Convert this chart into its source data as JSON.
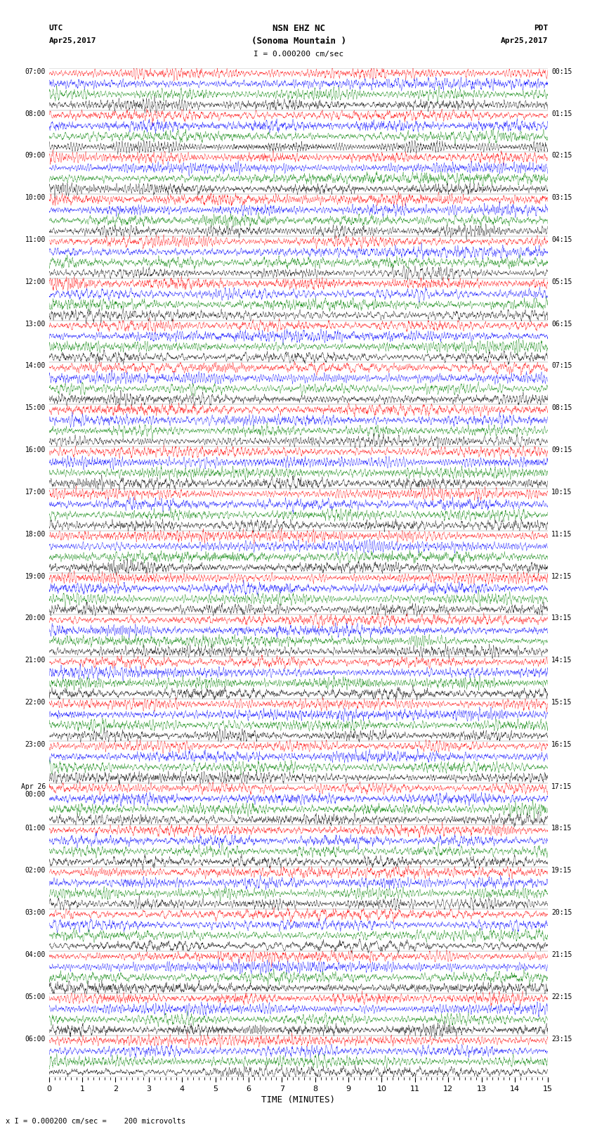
{
  "title_line1": "NSN EHZ NC",
  "title_line2": "(Sonoma Mountain )",
  "scale_label": "I = 0.000200 cm/sec",
  "left_label_top": "UTC",
  "left_label_date": "Apr25,2017",
  "right_label_top": "PDT",
  "right_label_date": "Apr25,2017",
  "bottom_label": "TIME (MINUTES)",
  "bottom_note": "x I = 0.000200 cm/sec =    200 microvolts",
  "utc_times_labeled": [
    "07:00",
    "08:00",
    "09:00",
    "10:00",
    "11:00",
    "12:00",
    "13:00",
    "14:00",
    "15:00",
    "16:00",
    "17:00",
    "18:00",
    "19:00",
    "20:00",
    "21:00",
    "22:00",
    "23:00",
    "Apr 26\n00:00",
    "01:00",
    "02:00",
    "03:00",
    "04:00",
    "05:00",
    "06:00"
  ],
  "pdt_times_labeled": [
    "00:15",
    "01:15",
    "02:15",
    "03:15",
    "04:15",
    "05:15",
    "06:15",
    "07:15",
    "08:15",
    "09:15",
    "10:15",
    "11:15",
    "12:15",
    "13:15",
    "14:15",
    "15:15",
    "16:15",
    "17:15",
    "18:15",
    "19:15",
    "20:15",
    "21:15",
    "22:15",
    "23:15"
  ],
  "n_hour_blocks": 24,
  "traces_per_block": 4,
  "n_minutes": 15,
  "trace_colors": [
    "red",
    "blue",
    "green",
    "black"
  ],
  "bg_color": "white",
  "samples_per_row": 3000
}
